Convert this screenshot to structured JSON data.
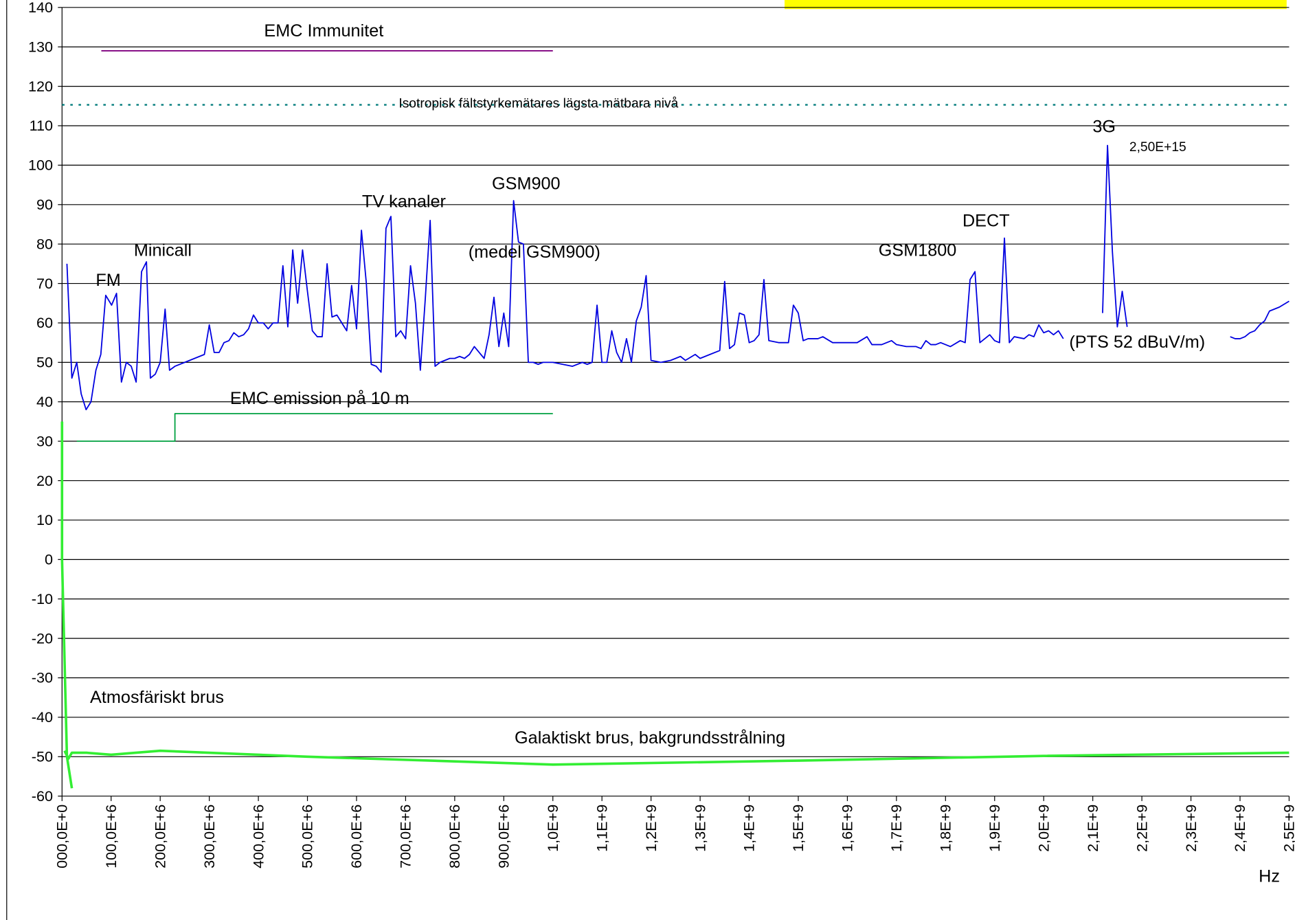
{
  "chart_data": {
    "type": "line",
    "xlim": [
      0,
      2500000000.0
    ],
    "ylim": [
      -60,
      140
    ],
    "yticks": [
      -60,
      -50,
      -40,
      -30,
      -20,
      -10,
      0,
      10,
      20,
      30,
      40,
      50,
      60,
      70,
      80,
      90,
      100,
      110,
      120,
      130,
      140
    ],
    "xticks": [
      {
        "value": 0,
        "label": "000,0E+0"
      },
      {
        "value": 100000000.0,
        "label": "100,0E+6"
      },
      {
        "value": 200000000.0,
        "label": "200,0E+6"
      },
      {
        "value": 300000000.0,
        "label": "300,0E+6"
      },
      {
        "value": 400000000.0,
        "label": "400,0E+6"
      },
      {
        "value": 500000000.0,
        "label": "500,0E+6"
      },
      {
        "value": 600000000.0,
        "label": "600,0E+6"
      },
      {
        "value": 700000000.0,
        "label": "700,0E+6"
      },
      {
        "value": 800000000.0,
        "label": "800,0E+6"
      },
      {
        "value": 900000000.0,
        "label": "900,0E+6"
      },
      {
        "value": 1000000000.0,
        "label": "1,0E+9"
      },
      {
        "value": 1100000000.0,
        "label": "1,1E+9"
      },
      {
        "value": 1200000000.0,
        "label": "1,2E+9"
      },
      {
        "value": 1300000000.0,
        "label": "1,3E+9"
      },
      {
        "value": 1400000000.0,
        "label": "1,4E+9"
      },
      {
        "value": 1500000000.0,
        "label": "1,5E+9"
      },
      {
        "value": 1600000000.0,
        "label": "1,6E+9"
      },
      {
        "value": 1700000000.0,
        "label": "1,7E+9"
      },
      {
        "value": 1800000000.0,
        "label": "1,8E+9"
      },
      {
        "value": 1900000000.0,
        "label": "1,9E+9"
      },
      {
        "value": 2000000000.0,
        "label": "2,0E+9"
      },
      {
        "value": 2100000000.0,
        "label": "2,1E+9"
      },
      {
        "value": 2200000000.0,
        "label": "2,2E+9"
      },
      {
        "value": 2300000000.0,
        "label": "2,3E+9"
      },
      {
        "value": 2400000000.0,
        "label": "2,4E+9"
      },
      {
        "value": 2500000000.0,
        "label": "2,5E+9"
      }
    ],
    "x_label": "Hz",
    "grid": true,
    "series": [
      {
        "color": "#0000e0",
        "width": 1.5,
        "x": [
          10000000.0,
          20000000.0,
          30000000.0,
          39000000.0,
          49000000.0,
          59000000.0,
          69000000.0,
          79000000.0,
          89000000.0,
          101000000.0,
          111000000.0,
          121000000.0,
          131000000.0,
          141000000.0,
          151000000.0,
          162000000.0,
          172000000.0,
          180000000.0,
          190000000.0,
          200000000.0,
          210000000.0,
          219000000.0,
          230000000.0,
          250000000.0,
          270000000.0,
          290000000.0,
          300000000.0,
          310000000.0,
          320000000.0,
          330000000.0,
          340000000.0,
          350000000.0,
          360000000.0,
          370000000.0,
          380000000.0,
          390000000.0,
          400000000.0,
          410000000.0,
          420000000.0,
          430000000.0,
          440000000.0,
          450000000.0,
          460000000.0,
          470000000.0,
          480000000.0,
          490000000.0,
          500000000.0,
          510000000.0,
          520000000.0,
          530000000.0,
          540000000.0,
          550000000.0,
          560000000.0,
          570000000.0,
          580000000.0,
          590000000.0,
          600000000.0,
          610000000.0,
          620000000.0,
          630000000.0,
          640000000.0,
          650000000.0,
          660000000.0,
          670000000.0,
          680000000.0,
          690000000.0,
          700000000.0,
          710000000.0,
          720000000.0,
          730000000.0,
          740000000.0,
          750000000.0,
          760000000.0,
          770000000.0,
          780000000.0,
          790000000.0,
          800000000.0,
          810000000.0,
          820000000.0,
          830000000.0,
          840000000.0,
          850000000.0,
          860000000.0,
          870000000.0,
          880000000.0,
          890000000.0,
          900000000.0,
          910000000.0,
          920000000.0,
          930000000.0,
          940000000.0,
          950000000.0,
          960000000.0,
          970000000.0,
          980000000.0,
          990000000.0,
          1000000000.0,
          1020000000.0,
          1040000000.0,
          1060000000.0,
          1070000000.0,
          1080000000.0,
          1090000000.0,
          1100000000.0,
          1110000000.0,
          1120000000.0,
          1130000000.0,
          1140000000.0,
          1150000000.0,
          1160000000.0,
          1170000000.0,
          1180000000.0,
          1190000000.0,
          1200000000.0,
          1220000000.0,
          1240000000.0,
          1260000000.0,
          1270000000.0,
          1290000000.0,
          1300000000.0,
          1320000000.0,
          1340000000.0,
          1350000000.0,
          1360000000.0,
          1370000000.0,
          1380000000.0,
          1390000000.0,
          1400000000.0,
          1410000000.0,
          1420000000.0,
          1430000000.0,
          1440000000.0,
          1460000000.0,
          1480000000.0,
          1490000000.0,
          1500000000.0,
          1510000000.0,
          1520000000.0,
          1540000000.0,
          1550000000.0,
          1570000000.0,
          1600000000.0,
          1620000000.0,
          1640000000.0,
          1650000000.0,
          1670000000.0,
          1690000000.0,
          1700000000.0,
          1720000000.0,
          1740000000.0,
          1750000000.0,
          1760000000.0,
          1770000000.0,
          1780000000.0,
          1790000000.0,
          1810000000.0,
          1830000000.0,
          1840000000.0,
          1850000000.0,
          1860000000.0,
          1870000000.0,
          1890000000.0,
          1900000000.0,
          1910000000.0,
          1920000000.0,
          1930000000.0,
          1940000000.0,
          1960000000.0,
          1970000000.0,
          1980000000.0,
          1990000000.0,
          2000000000.0,
          2010000000.0,
          2020000000.0,
          2030000000.0,
          2040000000.0,
          2080000000.0,
          2120000000.0,
          2130000000.0,
          2140000000.0,
          2150000000.0,
          2160000000.0,
          2170000000.0,
          2270000000.0,
          2380000000.0,
          2390000000.0,
          2400000000.0,
          2410000000.0,
          2420000000.0,
          2430000000.0,
          2440000000.0,
          2450000000.0,
          2460000000.0,
          2480000000.0,
          2500000000.0
        ],
        "values": [
          75,
          46,
          50,
          42,
          38,
          40,
          48,
          52,
          67,
          64.5,
          67.5,
          45,
          50,
          49,
          45,
          73,
          75.5,
          46,
          47,
          50,
          63.5,
          48,
          49,
          50,
          51,
          52,
          59.5,
          52.5,
          52.5,
          55,
          55.5,
          57.5,
          56.5,
          57,
          58.5,
          62,
          60,
          60,
          58.5,
          60,
          60,
          74.5,
          59,
          78.5,
          65,
          78.5,
          68,
          58,
          56.5,
          56.5,
          75,
          61.5,
          62,
          60,
          58,
          69.5,
          58.5,
          83.5,
          70,
          49.5,
          49,
          47.5,
          84,
          87,
          56.5,
          58,
          56,
          74.5,
          65,
          48,
          66,
          86,
          49,
          50,
          50.5,
          51,
          51,
          51.5,
          51,
          52,
          54,
          52.5,
          51,
          57,
          66.5,
          54,
          62.5,
          54,
          91,
          80.5,
          80,
          50,
          50,
          49.5,
          50,
          50,
          50,
          49.5,
          49,
          50,
          49.5,
          50,
          64.5,
          50,
          50,
          58,
          52.5,
          50,
          56,
          50,
          60.5,
          64,
          72,
          50.5,
          50,
          50.5,
          51.5,
          50.5,
          52,
          51,
          52,
          53,
          70.5,
          53.5,
          54.5,
          62.5,
          62,
          55,
          55.5,
          57,
          71,
          55.5,
          55,
          55,
          64.5,
          62.5,
          55.5,
          56,
          56,
          56.5,
          55,
          55,
          55,
          56.5,
          54.5,
          54.5,
          55.5,
          54.5,
          54,
          54,
          53.5,
          55.5,
          54.5,
          54.5,
          55,
          54,
          55.5,
          55,
          71,
          73,
          55,
          57,
          55.5,
          55,
          81.5,
          55,
          56.5,
          56,
          57,
          56.5,
          59.5,
          57.5,
          58,
          57,
          58,
          56,
          null,
          62.5,
          105,
          78,
          59,
          68,
          59,
          null,
          56.5,
          56,
          56,
          56.5,
          57.5,
          58,
          59.5,
          60.5,
          63,
          64,
          65.5
        ]
      },
      {
        "name": "EMC Immunitet",
        "color": "#800080",
        "width": 1.5,
        "x": [
          80000000.0,
          1000000000.0
        ],
        "values": [
          129,
          129
        ]
      },
      {
        "name": "Isotropisk fältstyrkemätares lägsta mätbara nivå",
        "color": "#007b7b",
        "width": 2,
        "dash": true,
        "x": [
          0,
          2500000000.0
        ],
        "values": [
          115.3,
          115.3
        ]
      },
      {
        "name": "EMC emission på 10 m",
        "color": "#00a040",
        "width": 1.5,
        "x": [
          30000000.0,
          230000000.0,
          230000000.0,
          1000000000.0
        ],
        "values": [
          30,
          30,
          37,
          37
        ]
      },
      {
        "name": "Atmosfäriskt brus",
        "color": "#33ee33",
        "width": 3,
        "x": [
          0,
          0,
          10000000.0,
          20000000.0
        ],
        "values": [
          35,
          0,
          -50,
          -58
        ]
      },
      {
        "name": "Galaktiskt brus, bakgrundsstrålning",
        "color": "#33ee33",
        "width": 3,
        "x": [
          5000000.0,
          13000000.0,
          20000000.0,
          50000000.0,
          100000000.0,
          200000000.0,
          500000000.0,
          1000000000.0,
          1500000000.0,
          2000000000.0,
          2500000000.0
        ],
        "values": [
          -48.5,
          -50.5,
          -49,
          -49,
          -49.5,
          -48.5,
          -50,
          -52,
          -51,
          -49.8,
          -49
        ]
      }
    ],
    "annotations": [
      "FM",
      "Minicall",
      "TV kanaler",
      "GSM900",
      "(medel GSM900)",
      "GSM1800",
      "DECT",
      "3G",
      "2,50E+15",
      "(PTS 52 dBuV/m)"
    ]
  }
}
